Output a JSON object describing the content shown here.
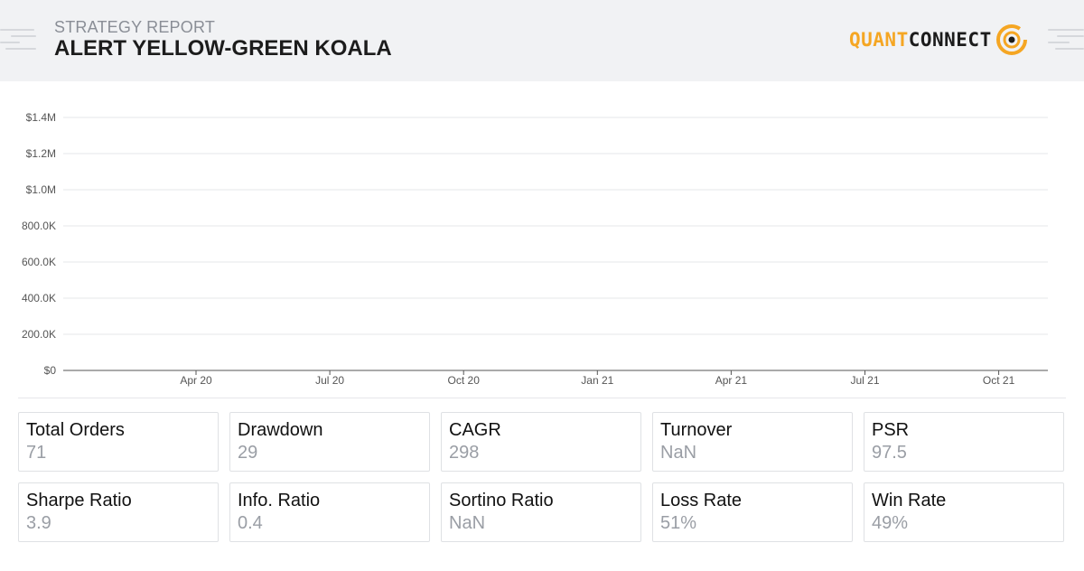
{
  "header": {
    "subtitle": "STRATEGY REPORT",
    "title": "ALERT YELLOW-GREEN KOALA",
    "logo": {
      "quant": "QUANT",
      "connect": "CONNECT",
      "icon": "quantconnect-logo-icon"
    }
  },
  "colors": {
    "header_bg": "#f1f2f4",
    "logo_orange": "#f5a623",
    "label_text": "#111111",
    "value_text": "#9a9ea5",
    "grid": "#e6e7ea",
    "axis": "#555555"
  },
  "chart_data": {
    "type": "line",
    "title": "",
    "xlabel": "",
    "ylabel": "",
    "y_ticks": [
      "$1.4M",
      "$1.2M",
      "$1.0M",
      "800.0K",
      "600.0K",
      "400.0K",
      "200.0K",
      "$0"
    ],
    "ylim": [
      0,
      1400000
    ],
    "x_ticks": [
      "Apr 20",
      "Jul 20",
      "Oct 20",
      "Jan 21",
      "Apr 21",
      "Jul 21",
      "Oct 21"
    ],
    "series": [],
    "grid": true,
    "legend": "none"
  },
  "stats": [
    {
      "label": "Total Orders",
      "value": "71"
    },
    {
      "label": "Drawdown",
      "value": "29"
    },
    {
      "label": "CAGR",
      "value": "298"
    },
    {
      "label": "Turnover",
      "value": "NaN"
    },
    {
      "label": "PSR",
      "value": "97.5"
    },
    {
      "label": "Sharpe Ratio",
      "value": "3.9"
    },
    {
      "label": "Info. Ratio",
      "value": "0.4"
    },
    {
      "label": "Sortino Ratio",
      "value": "NaN"
    },
    {
      "label": "Loss Rate",
      "value": "51%"
    },
    {
      "label": "Win Rate",
      "value": "49%"
    }
  ]
}
